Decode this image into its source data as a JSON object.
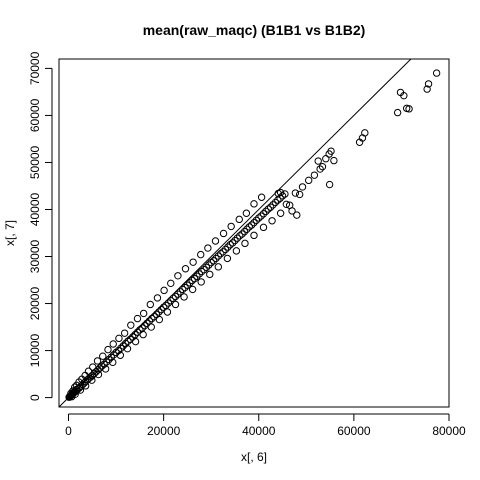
{
  "chart_data": {
    "type": "scatter",
    "title": "mean(raw_maqc) (B1B1 vs B1B2)",
    "xlabel": "x[, 6]",
    "ylabel": "x[, 7]",
    "xlim": [
      -2000,
      80000
    ],
    "ylim": [
      -2000,
      72000
    ],
    "xticks": [
      0,
      20000,
      40000,
      60000,
      80000
    ],
    "yticks": [
      0,
      10000,
      20000,
      30000,
      40000,
      50000,
      60000,
      70000
    ],
    "xtick_labels": [
      "0",
      "20000",
      "40000",
      "60000",
      "80000"
    ],
    "ytick_labels": [
      "0",
      "10000",
      "20000",
      "30000",
      "40000",
      "50000",
      "60000",
      "70000"
    ],
    "grid": false,
    "marker": "open-circle",
    "reference_line": {
      "slope": 1,
      "intercept": 0
    },
    "points": [
      [
        200,
        150
      ],
      [
        400,
        300
      ],
      [
        600,
        500
      ],
      [
        800,
        700
      ],
      [
        1000,
        900
      ],
      [
        1200,
        1100
      ],
      [
        1500,
        1300
      ],
      [
        1800,
        1600
      ],
      [
        2000,
        1900
      ],
      [
        2300,
        2100
      ],
      [
        2600,
        2400
      ],
      [
        3000,
        2800
      ],
      [
        3300,
        3100
      ],
      [
        3600,
        3400
      ],
      [
        4000,
        3800
      ],
      [
        4300,
        4100
      ],
      [
        4700,
        4400
      ],
      [
        5000,
        4700
      ],
      [
        5400,
        5100
      ],
      [
        5800,
        5500
      ],
      [
        6200,
        5900
      ],
      [
        6600,
        6300
      ],
      [
        7000,
        6700
      ],
      [
        7500,
        7100
      ],
      [
        8000,
        7600
      ],
      [
        8500,
        8100
      ],
      [
        9000,
        8600
      ],
      [
        9500,
        9100
      ],
      [
        10000,
        9600
      ],
      [
        10500,
        10000
      ],
      [
        11000,
        10500
      ],
      [
        11500,
        11000
      ],
      [
        12000,
        11500
      ],
      [
        12500,
        12000
      ],
      [
        13000,
        12400
      ],
      [
        13500,
        12900
      ],
      [
        14000,
        13400
      ],
      [
        14500,
        13900
      ],
      [
        15000,
        14400
      ],
      [
        15500,
        14800
      ],
      [
        16000,
        15300
      ],
      [
        16500,
        15800
      ],
      [
        17000,
        16300
      ],
      [
        17500,
        16800
      ],
      [
        18000,
        17200
      ],
      [
        18500,
        17700
      ],
      [
        19000,
        18200
      ],
      [
        19500,
        18700
      ],
      [
        20000,
        19200
      ],
      [
        20500,
        19600
      ],
      [
        21000,
        20100
      ],
      [
        21500,
        20600
      ],
      [
        22000,
        21100
      ],
      [
        22500,
        21500
      ],
      [
        23000,
        22000
      ],
      [
        23500,
        22500
      ],
      [
        24000,
        23000
      ],
      [
        24500,
        23400
      ],
      [
        25000,
        23900
      ],
      [
        25500,
        24400
      ],
      [
        26000,
        24900
      ],
      [
        26500,
        25300
      ],
      [
        27000,
        25800
      ],
      [
        27500,
        26300
      ],
      [
        28000,
        26800
      ],
      [
        28500,
        27200
      ],
      [
        29000,
        27700
      ],
      [
        29500,
        28200
      ],
      [
        30000,
        28700
      ],
      [
        30500,
        29100
      ],
      [
        31000,
        29600
      ],
      [
        31500,
        30100
      ],
      [
        32000,
        30600
      ],
      [
        32500,
        31000
      ],
      [
        33000,
        31500
      ],
      [
        33500,
        32000
      ],
      [
        34000,
        32500
      ],
      [
        34500,
        32900
      ],
      [
        35000,
        33400
      ],
      [
        35500,
        33900
      ],
      [
        36000,
        34400
      ],
      [
        36500,
        34800
      ],
      [
        37000,
        35300
      ],
      [
        37500,
        35800
      ],
      [
        38000,
        36300
      ],
      [
        38500,
        36700
      ],
      [
        39000,
        37200
      ],
      [
        39500,
        37700
      ],
      [
        40000,
        38200
      ],
      [
        40500,
        38600
      ],
      [
        41000,
        39100
      ],
      [
        41500,
        39600
      ],
      [
        42000,
        40100
      ],
      [
        42500,
        40500
      ],
      [
        43000,
        41000
      ],
      [
        43500,
        41500
      ],
      [
        44000,
        42000
      ],
      [
        44500,
        42400
      ],
      [
        45000,
        42900
      ],
      [
        45500,
        43300
      ],
      [
        500,
        900
      ],
      [
        900,
        1400
      ],
      [
        1300,
        2200
      ],
      [
        1700,
        2600
      ],
      [
        2200,
        3300
      ],
      [
        2800,
        3900
      ],
      [
        3500,
        4700
      ],
      [
        4200,
        5600
      ],
      [
        5100,
        6500
      ],
      [
        6100,
        7800
      ],
      [
        7200,
        8800
      ],
      [
        8300,
        10200
      ],
      [
        9400,
        11400
      ],
      [
        10600,
        12600
      ],
      [
        11800,
        13700
      ],
      [
        13100,
        15400
      ],
      [
        14500,
        16800
      ],
      [
        15800,
        17900
      ],
      [
        17200,
        19800
      ],
      [
        18700,
        21200
      ],
      [
        20100,
        22800
      ],
      [
        21500,
        24300
      ],
      [
        23000,
        25900
      ],
      [
        24600,
        27400
      ],
      [
        26200,
        28800
      ],
      [
        27800,
        30400
      ],
      [
        29300,
        31800
      ],
      [
        30900,
        33300
      ],
      [
        32600,
        34900
      ],
      [
        34200,
        36400
      ],
      [
        35900,
        37900
      ],
      [
        37400,
        39200
      ],
      [
        39000,
        41200
      ],
      [
        40600,
        42600
      ],
      [
        700,
        200
      ],
      [
        1400,
        700
      ],
      [
        2500,
        1600
      ],
      [
        3600,
        2500
      ],
      [
        4900,
        3700
      ],
      [
        6300,
        4900
      ],
      [
        7800,
        6100
      ],
      [
        9300,
        7500
      ],
      [
        10900,
        9000
      ],
      [
        12400,
        10400
      ],
      [
        14100,
        11900
      ],
      [
        15700,
        13400
      ],
      [
        17400,
        15000
      ],
      [
        19100,
        16600
      ],
      [
        20800,
        18200
      ],
      [
        22500,
        19800
      ],
      [
        24300,
        21400
      ],
      [
        26100,
        23000
      ],
      [
        27900,
        24600
      ],
      [
        29700,
        26200
      ],
      [
        31500,
        27800
      ],
      [
        33400,
        29600
      ],
      [
        35300,
        31200
      ],
      [
        37100,
        32800
      ],
      [
        39000,
        34500
      ],
      [
        41000,
        36200
      ],
      [
        42800,
        37600
      ],
      [
        44600,
        39200
      ],
      [
        46500,
        40900
      ],
      [
        48000,
        38800
      ],
      [
        47000,
        39700
      ],
      [
        45800,
        41100
      ],
      [
        44100,
        43400
      ],
      [
        44600,
        43600
      ],
      [
        47700,
        43500
      ],
      [
        48600,
        43200
      ],
      [
        49200,
        44800
      ],
      [
        50500,
        46200
      ],
      [
        51700,
        47300
      ],
      [
        52900,
        48600
      ],
      [
        53400,
        49100
      ],
      [
        52500,
        50300
      ],
      [
        54100,
        50800
      ],
      [
        54800,
        51800
      ],
      [
        55200,
        52400
      ],
      [
        55800,
        50400
      ],
      [
        54900,
        45300
      ],
      [
        61200,
        54300
      ],
      [
        61800,
        55200
      ],
      [
        62300,
        56300
      ],
      [
        69200,
        60600
      ],
      [
        69800,
        64900
      ],
      [
        70500,
        64200
      ],
      [
        71100,
        61500
      ],
      [
        71600,
        61400
      ],
      [
        75400,
        65600
      ],
      [
        75700,
        66700
      ],
      [
        77400,
        69000
      ],
      [
        120,
        80
      ],
      [
        300,
        260
      ],
      [
        450,
        380
      ],
      [
        650,
        620
      ],
      [
        850,
        760
      ],
      [
        1100,
        1150
      ],
      [
        1350,
        1250
      ],
      [
        1650,
        1700
      ]
    ]
  }
}
